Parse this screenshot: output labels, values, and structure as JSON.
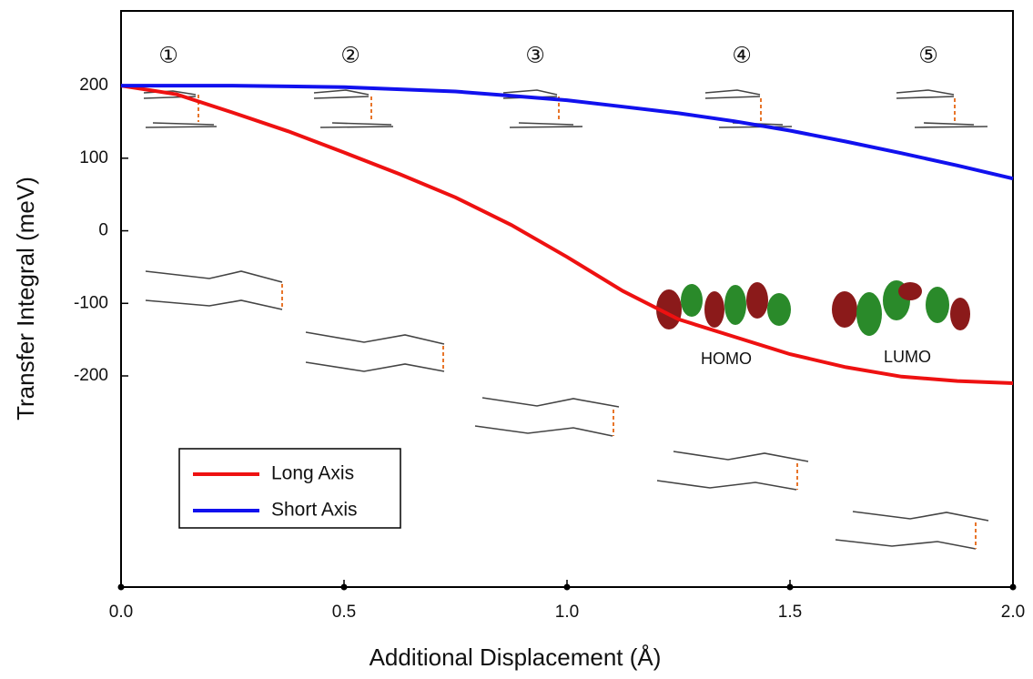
{
  "chart_data": {
    "type": "line",
    "xlabel": "Additional Displacement (Å)",
    "ylabel": "Transfer Integral (meV)",
    "x": [
      0,
      0.125,
      0.25,
      0.375,
      0.5,
      0.625,
      0.75,
      0.875,
      1.0,
      1.125,
      1.25,
      1.375,
      1.5,
      1.625,
      1.75,
      1.875,
      2.0
    ],
    "series": [
      {
        "name": "Long Axis",
        "color": "#ee1111",
        "values": [
          200,
          188,
          163,
          137,
          108,
          78,
          46,
          8,
          -36,
          -83,
          -122,
          -146,
          -170,
          -188,
          -201,
          -207,
          -210
        ]
      },
      {
        "name": "Short Axis",
        "color": "#1111ee",
        "values": [
          200,
          200,
          200,
          199,
          198,
          195,
          192,
          186,
          180,
          171,
          162,
          151,
          138,
          123,
          107,
          90,
          72
        ]
      }
    ],
    "xlim": [
      0,
      2.0
    ],
    "xticks": [
      {
        "value": 0,
        "label": "0.0"
      },
      0.5,
      {
        "value": 1.0,
        "label": "1.0"
      },
      1.5,
      {
        "value": 2.0,
        "label": "2.0"
      }
    ],
    "ylim": [
      -491,
      303
    ],
    "yticks": [
      200,
      100,
      0,
      -100,
      -200
    ],
    "legend": "lower-left",
    "annotations": [
      "①",
      "②",
      "③",
      "④",
      "⑤",
      "HOMO",
      "LUMO"
    ]
  }
}
